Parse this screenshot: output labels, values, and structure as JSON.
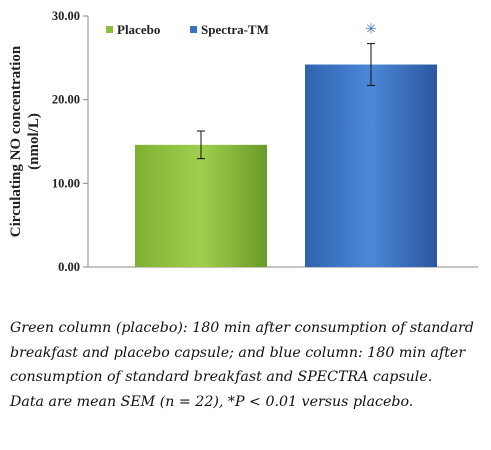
{
  "chart_data": {
    "type": "bar",
    "categories": [
      "Placebo",
      "Spectra-TM"
    ],
    "values": [
      14.6,
      24.2
    ],
    "errors": [
      1.65,
      2.5
    ],
    "ylabel_lines": [
      "Circulating NO concentration",
      "(nmol/L)"
    ],
    "ylim": [
      0,
      30
    ],
    "yticks": [
      "0.00",
      "10.00",
      "20.00",
      "30.00"
    ],
    "ytick_values": [
      0,
      10,
      20,
      30
    ],
    "grid": false,
    "legend_placement": "top-left",
    "legend": [
      {
        "label": "Placebo",
        "color": "#8bbe3c"
      },
      {
        "label": "Spectra-TM",
        "color": "#3a73c4"
      }
    ],
    "significance_marker": "✳",
    "significance_index": 1
  },
  "colors": {
    "placebo_light": "#9ccd48",
    "placebo_dark": "#6fa22a",
    "spectra_light": "#4a84d6",
    "spectra_dark": "#2c5ca8",
    "marker": "#3a73c4"
  },
  "caption": {
    "lines": [
      "Green column (placebo): 180 min after consumption of standard",
      "breakfast and placebo capsule; and blue column: 180 min after",
      "consumption of standard breakfast and SPECTRA capsule.",
      "Data are mean  SEM (n = 22),  *P < 0.01 versus placebo."
    ]
  }
}
